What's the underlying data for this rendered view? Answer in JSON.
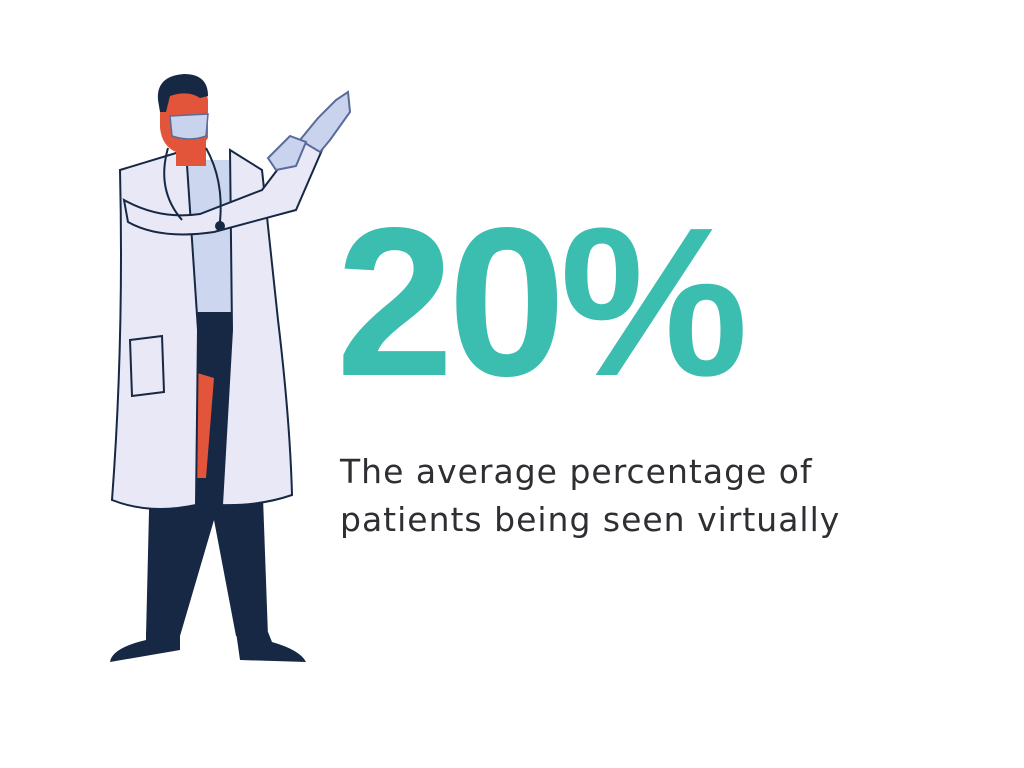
{
  "stat": "20%",
  "caption": [
    "The average percentage of",
    "patients being seen virtually"
  ]
}
